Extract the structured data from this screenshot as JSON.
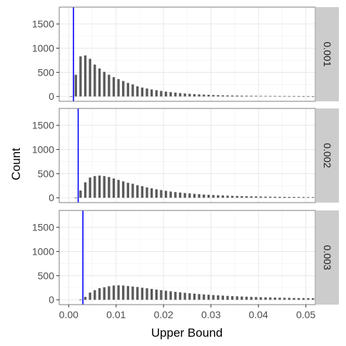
{
  "chart_data": {
    "type": "bar",
    "facet_layout": "vertical, strip labels on right",
    "xlabel": "Upper Bound",
    "ylabel": "Count",
    "xlim": [
      -0.002,
      0.052
    ],
    "ylim": [
      -100,
      1850
    ],
    "x_ticks": [
      0.0,
      0.01,
      0.02,
      0.03,
      0.04,
      0.05
    ],
    "x_tick_labels": [
      "0.00",
      "0.01",
      "0.02",
      "0.03",
      "0.04",
      "0.05"
    ],
    "y_ticks": [
      0,
      500,
      1000,
      1500
    ],
    "y_tick_labels": [
      "0",
      "500",
      "1000",
      "1500"
    ],
    "grid": true,
    "bar_color": "#595959",
    "reference_line_color": "#0000ff",
    "strip_color": "#cccccc",
    "bin_width": 0.001,
    "bar_width_fraction": 0.5,
    "panels": [
      {
        "strip_label": "0.001",
        "reference_x": 0.001,
        "bars": [
          [
            0.0005,
            5
          ],
          [
            0.0015,
            450
          ],
          [
            0.0025,
            830
          ],
          [
            0.0035,
            850
          ],
          [
            0.0045,
            780
          ],
          [
            0.0055,
            660
          ],
          [
            0.0065,
            580
          ],
          [
            0.0075,
            510
          ],
          [
            0.0085,
            450
          ],
          [
            0.0095,
            400
          ],
          [
            0.0105,
            360
          ],
          [
            0.0115,
            320
          ],
          [
            0.0125,
            280
          ],
          [
            0.0135,
            250
          ],
          [
            0.0145,
            210
          ],
          [
            0.0155,
            185
          ],
          [
            0.0165,
            165
          ],
          [
            0.0175,
            145
          ],
          [
            0.0185,
            130
          ],
          [
            0.0195,
            115
          ],
          [
            0.0205,
            100
          ],
          [
            0.0215,
            90
          ],
          [
            0.0225,
            80
          ],
          [
            0.0235,
            70
          ],
          [
            0.0245,
            62
          ],
          [
            0.0255,
            55
          ],
          [
            0.0265,
            48
          ],
          [
            0.0275,
            43
          ],
          [
            0.0285,
            38
          ],
          [
            0.0295,
            34
          ],
          [
            0.0305,
            30
          ],
          [
            0.0315,
            27
          ],
          [
            0.0325,
            24
          ],
          [
            0.0335,
            22
          ],
          [
            0.0345,
            20
          ],
          [
            0.0355,
            18
          ],
          [
            0.0365,
            16
          ],
          [
            0.0375,
            15
          ],
          [
            0.0385,
            14
          ],
          [
            0.0395,
            13
          ],
          [
            0.0405,
            12
          ],
          [
            0.0415,
            11
          ],
          [
            0.0425,
            10
          ],
          [
            0.0435,
            10
          ],
          [
            0.0445,
            9
          ],
          [
            0.0455,
            9
          ],
          [
            0.0465,
            8
          ],
          [
            0.0475,
            8
          ],
          [
            0.0485,
            7
          ],
          [
            0.0495,
            7
          ],
          [
            0.0505,
            7
          ],
          [
            0.0515,
            6
          ]
        ]
      },
      {
        "strip_label": "0.002",
        "reference_x": 0.002,
        "bars": [
          [
            0.0015,
            5
          ],
          [
            0.0025,
            150
          ],
          [
            0.0035,
            320
          ],
          [
            0.0045,
            420
          ],
          [
            0.0055,
            450
          ],
          [
            0.0065,
            460
          ],
          [
            0.0075,
            450
          ],
          [
            0.0085,
            430
          ],
          [
            0.0095,
            400
          ],
          [
            0.0105,
            370
          ],
          [
            0.0115,
            340
          ],
          [
            0.0125,
            310
          ],
          [
            0.0135,
            290
          ],
          [
            0.0145,
            260
          ],
          [
            0.0155,
            240
          ],
          [
            0.0165,
            215
          ],
          [
            0.0175,
            195
          ],
          [
            0.0185,
            175
          ],
          [
            0.0195,
            160
          ],
          [
            0.0205,
            145
          ],
          [
            0.0215,
            130
          ],
          [
            0.0225,
            118
          ],
          [
            0.0235,
            108
          ],
          [
            0.0245,
            98
          ],
          [
            0.0255,
            90
          ],
          [
            0.0265,
            82
          ],
          [
            0.0275,
            75
          ],
          [
            0.0285,
            68
          ],
          [
            0.0295,
            62
          ],
          [
            0.0305,
            57
          ],
          [
            0.0315,
            52
          ],
          [
            0.0325,
            48
          ],
          [
            0.0335,
            44
          ],
          [
            0.0345,
            40
          ],
          [
            0.0355,
            37
          ],
          [
            0.0365,
            34
          ],
          [
            0.0375,
            32
          ],
          [
            0.0385,
            30
          ],
          [
            0.0395,
            28
          ],
          [
            0.0405,
            26
          ],
          [
            0.0415,
            24
          ],
          [
            0.0425,
            22
          ],
          [
            0.0435,
            21
          ],
          [
            0.0445,
            20
          ],
          [
            0.0455,
            19
          ],
          [
            0.0465,
            18
          ],
          [
            0.0475,
            17
          ],
          [
            0.0485,
            16
          ],
          [
            0.0495,
            15
          ],
          [
            0.0505,
            14
          ],
          [
            0.0515,
            13
          ]
        ]
      },
      {
        "strip_label": "0.003",
        "reference_x": 0.003,
        "bars": [
          [
            0.0025,
            5
          ],
          [
            0.0035,
            60
          ],
          [
            0.0045,
            150
          ],
          [
            0.0055,
            200
          ],
          [
            0.0065,
            240
          ],
          [
            0.0075,
            260
          ],
          [
            0.0085,
            280
          ],
          [
            0.0095,
            295
          ],
          [
            0.0105,
            300
          ],
          [
            0.0115,
            295
          ],
          [
            0.0125,
            285
          ],
          [
            0.0135,
            275
          ],
          [
            0.0145,
            265
          ],
          [
            0.0155,
            250
          ],
          [
            0.0165,
            238
          ],
          [
            0.0175,
            225
          ],
          [
            0.0185,
            212
          ],
          [
            0.0195,
            200
          ],
          [
            0.0205,
            188
          ],
          [
            0.0215,
            176
          ],
          [
            0.0225,
            165
          ],
          [
            0.0235,
            155
          ],
          [
            0.0245,
            145
          ],
          [
            0.0255,
            135
          ],
          [
            0.0265,
            127
          ],
          [
            0.0275,
            119
          ],
          [
            0.0285,
            111
          ],
          [
            0.0295,
            104
          ],
          [
            0.0305,
            98
          ],
          [
            0.0315,
            92
          ],
          [
            0.0325,
            86
          ],
          [
            0.0335,
            81
          ],
          [
            0.0345,
            76
          ],
          [
            0.0355,
            72
          ],
          [
            0.0365,
            68
          ],
          [
            0.0375,
            64
          ],
          [
            0.0385,
            60
          ],
          [
            0.0395,
            57
          ],
          [
            0.0405,
            54
          ],
          [
            0.0415,
            51
          ],
          [
            0.0425,
            48
          ],
          [
            0.0435,
            46
          ],
          [
            0.0445,
            44
          ],
          [
            0.0455,
            42
          ],
          [
            0.0465,
            40
          ],
          [
            0.0475,
            38
          ],
          [
            0.0485,
            36
          ],
          [
            0.0495,
            34
          ],
          [
            0.0505,
            33
          ],
          [
            0.0515,
            32
          ]
        ]
      }
    ]
  }
}
